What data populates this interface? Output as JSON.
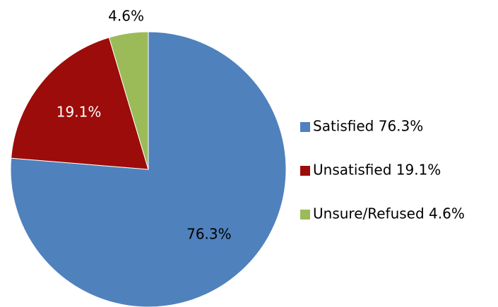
{
  "chart_data": {
    "type": "pie",
    "categories": [
      "Satisfied  76.3%",
      "Unsatisfied  19.1%",
      "Unsure/Refused 4.6%"
    ],
    "values": [
      76.3,
      19.1,
      4.6
    ],
    "value_labels": [
      "76.3%",
      "19.1%",
      "4.6%"
    ],
    "colors": [
      "#4f81bd",
      "#9c0c0a",
      "#9bbb59"
    ],
    "label_colors": [
      "#000000",
      "#ffffff",
      "#000000"
    ],
    "legend": "right"
  }
}
